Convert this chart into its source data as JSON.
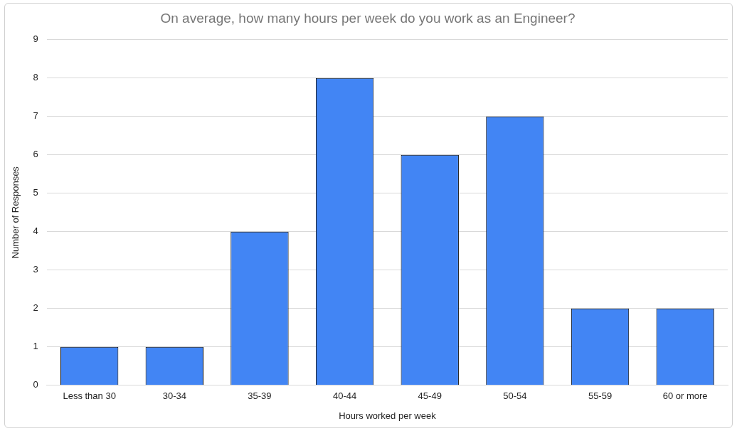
{
  "chart_data": {
    "type": "bar",
    "title": "On average, how many hours per week do you work as an Engineer?",
    "xlabel": "Hours worked per week",
    "ylabel": "Number of Responses",
    "categories": [
      "Less than 30",
      "30-34",
      "35-39",
      "40-44",
      "45-49",
      "50-54",
      "55-59",
      "60 or more"
    ],
    "values": [
      1,
      1,
      4,
      8,
      6,
      7,
      2,
      2
    ],
    "color": "#4285f4",
    "ylim": [
      0,
      9
    ],
    "yticks": [
      0,
      1,
      2,
      3,
      4,
      5,
      6,
      7,
      8,
      9
    ],
    "grid": "y",
    "legend": false
  }
}
